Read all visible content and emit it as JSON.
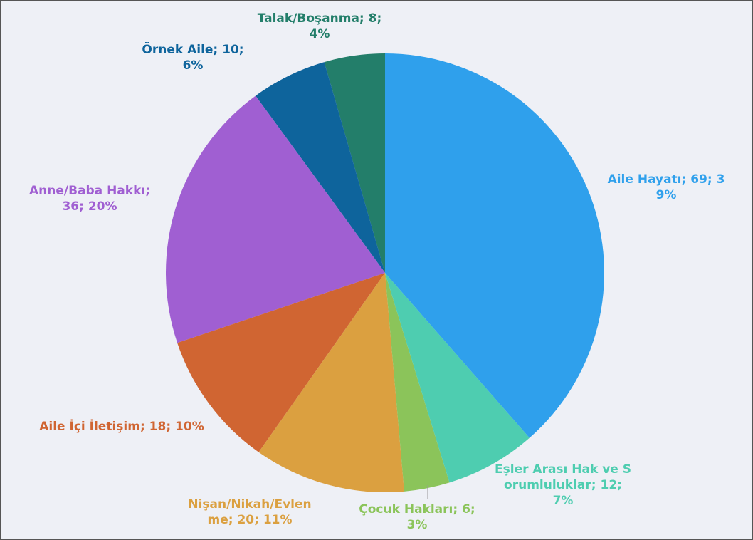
{
  "chart_data": {
    "type": "pie",
    "values": [
      69,
      12,
      6,
      20,
      18,
      36,
      10,
      8
    ],
    "value_labels": [
      "Aile Hayatı; 69; 39%",
      "Eşler Arası Hak ve Sorumluluklar; 12; 7%",
      "Çocuk Hakları; 6; 3%",
      "Nişan/Nikah/Evlenme; 20; 11%",
      "Aile İçi İletişim; 18; 10%",
      "Anne/Baba Hakkı; 36; 20%",
      "Örnek Aile; 10; 6%",
      "Talak/Boşanma; 8; 4%"
    ],
    "colors": [
      "#2fa0ec",
      "#4ecdb0",
      "#8bc45a",
      "#dba040",
      "#d06532",
      "#a05fd2",
      "#0e649c",
      "#237e6a"
    ]
  }
}
